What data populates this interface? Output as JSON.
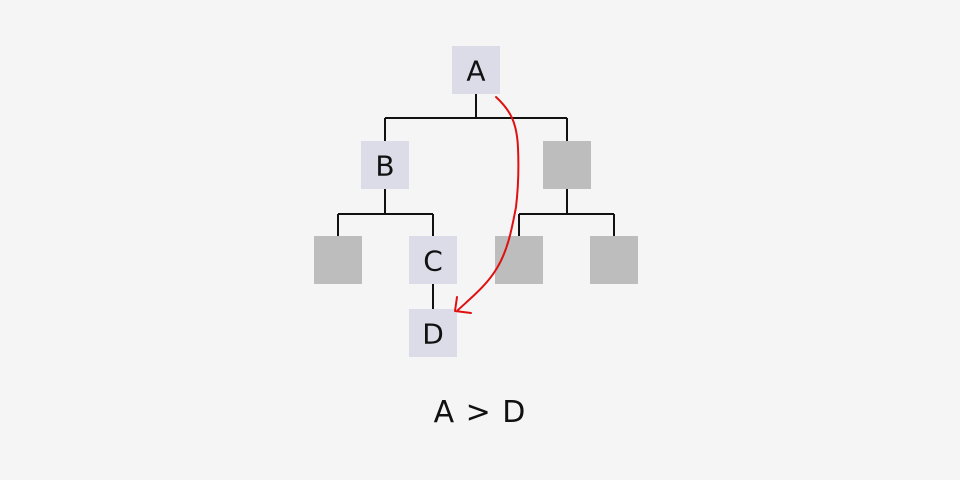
{
  "nodes": {
    "a": {
      "label": "A"
    },
    "b": {
      "label": "B"
    },
    "c": {
      "label": "C"
    },
    "d": {
      "label": "D"
    }
  },
  "caption": {
    "text": "A > D"
  },
  "colors": {
    "background": "#f5f5f5",
    "labeled_node": "#dcdce8",
    "unlabeled_node": "#bdbdbd",
    "edge": "#111111",
    "arrow": "#e01010"
  }
}
